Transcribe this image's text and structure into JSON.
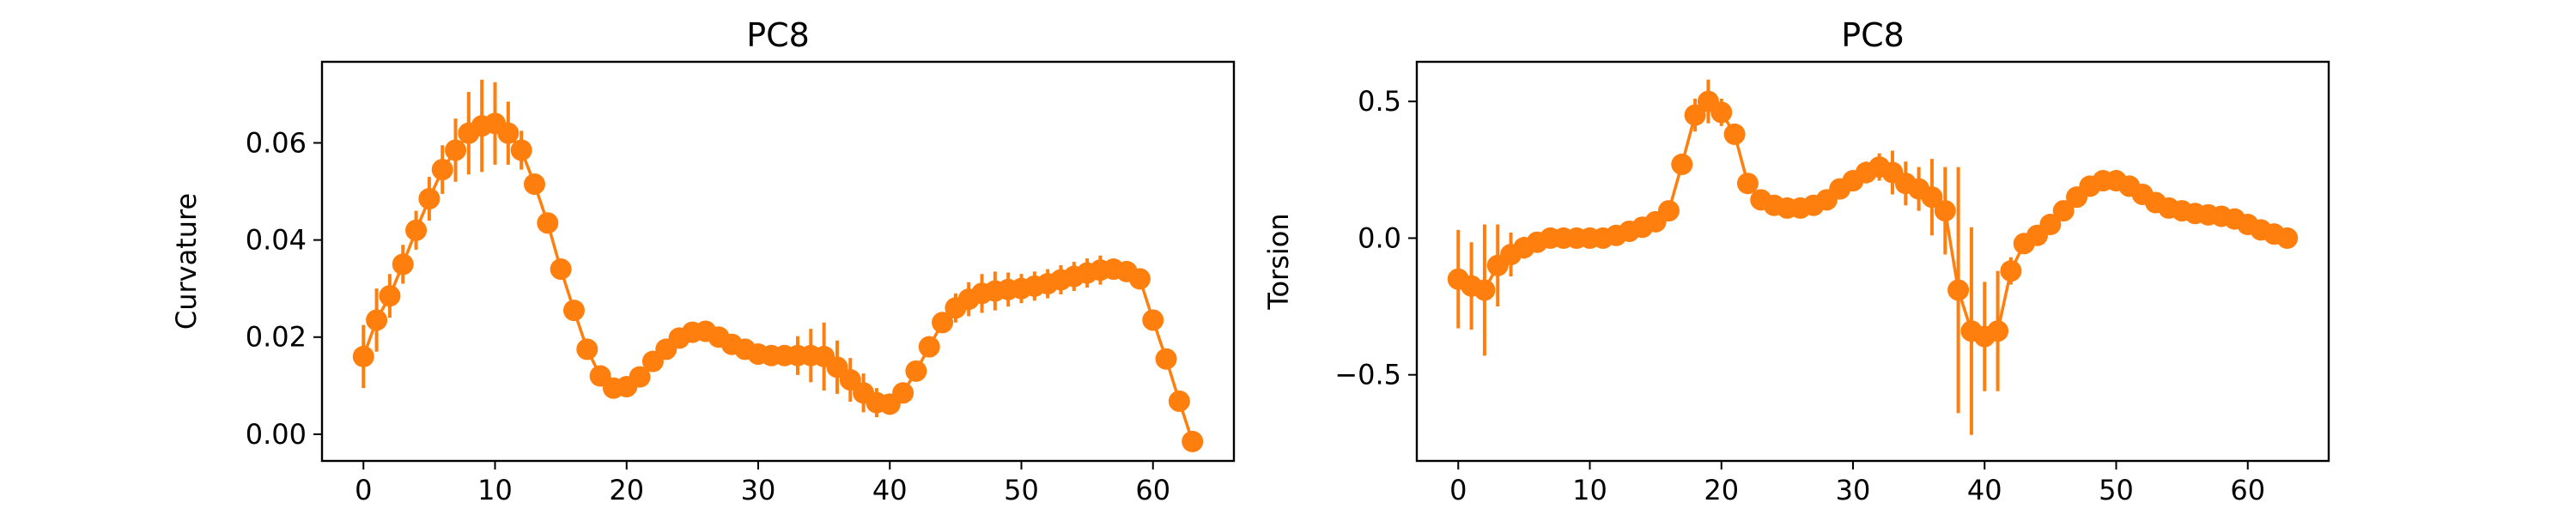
{
  "chart_data": [
    {
      "type": "line",
      "title": "PC8",
      "xlabel": "",
      "ylabel": "Curvature",
      "xlim": [
        -3.15,
        66.15
      ],
      "ylim": [
        -0.0055,
        0.0767
      ],
      "xticks": [
        0,
        10,
        20,
        30,
        40,
        50,
        60
      ],
      "xtick_labels": [
        "0",
        "10",
        "20",
        "30",
        "40",
        "50",
        "60"
      ],
      "yticks": [
        0.0,
        0.02,
        0.04,
        0.06
      ],
      "ytick_labels": [
        "0.00",
        "0.02",
        "0.04",
        "0.06"
      ],
      "grid": false,
      "color": "#ff7f0e",
      "series": [
        {
          "x": [
            0,
            1,
            2,
            3,
            4,
            5,
            6,
            7,
            8,
            9,
            10,
            11,
            12,
            13,
            14,
            15,
            16,
            17,
            18,
            19,
            20,
            21,
            22,
            23,
            24,
            25,
            26,
            27,
            28,
            29,
            30,
            31,
            32,
            33,
            34,
            35,
            36,
            37,
            38,
            39,
            40,
            41,
            42,
            43,
            44,
            45,
            46,
            47,
            48,
            49,
            50,
            51,
            52,
            53,
            54,
            55,
            56,
            57,
            58,
            59,
            60,
            61,
            62,
            63
          ],
          "y": [
            0.016,
            0.0235,
            0.0285,
            0.035,
            0.042,
            0.0485,
            0.0545,
            0.0585,
            0.062,
            0.0635,
            0.064,
            0.062,
            0.0585,
            0.0515,
            0.0435,
            0.034,
            0.0255,
            0.0175,
            0.012,
            0.0095,
            0.0098,
            0.0118,
            0.015,
            0.0175,
            0.0198,
            0.021,
            0.0212,
            0.02,
            0.0185,
            0.0175,
            0.0165,
            0.0162,
            0.0162,
            0.0162,
            0.0162,
            0.016,
            0.0138,
            0.0112,
            0.0085,
            0.0065,
            0.0062,
            0.0085,
            0.013,
            0.018,
            0.023,
            0.026,
            0.0278,
            0.029,
            0.0295,
            0.0298,
            0.03,
            0.0305,
            0.031,
            0.0318,
            0.0325,
            0.0332,
            0.0338,
            0.034,
            0.0335,
            0.032,
            0.0235,
            0.0155,
            0.0068,
            -0.0015
          ],
          "error": [
            0.0065,
            0.0065,
            0.0045,
            0.004,
            0.004,
            0.0045,
            0.005,
            0.0065,
            0.0085,
            0.0095,
            0.0085,
            0.0065,
            0.004,
            0.002,
            0.001,
            0.001,
            0.001,
            0.001,
            0.0015,
            0.0015,
            0.0015,
            0.0015,
            0.0015,
            0.0015,
            0.0015,
            0.0015,
            0.0015,
            0.0015,
            0.0015,
            0.0015,
            0.0015,
            0.0015,
            0.0015,
            0.004,
            0.0055,
            0.007,
            0.0055,
            0.0045,
            0.004,
            0.003,
            0.002,
            0.001,
            0.001,
            0.001,
            0.002,
            0.003,
            0.0035,
            0.004,
            0.004,
            0.0035,
            0.003,
            0.003,
            0.003,
            0.003,
            0.003,
            0.003,
            0.003,
            0.002,
            0.002,
            0.0015,
            0.001,
            0.001,
            0.001,
            0.001
          ]
        }
      ]
    },
    {
      "type": "line",
      "title": "PC8",
      "xlabel": "",
      "ylabel": "Torsion",
      "xlim": [
        -3.15,
        66.15
      ],
      "ylim": [
        -0.815,
        0.645
      ],
      "xticks": [
        0,
        10,
        20,
        30,
        40,
        50,
        60
      ],
      "xtick_labels": [
        "0",
        "10",
        "20",
        "30",
        "40",
        "50",
        "60"
      ],
      "yticks": [
        -0.5,
        0.0,
        0.5
      ],
      "ytick_labels": [
        "−0.5",
        "0.0",
        "0.5"
      ],
      "grid": false,
      "color": "#ff7f0e",
      "series": [
        {
          "x": [
            0,
            1,
            2,
            3,
            4,
            5,
            6,
            7,
            8,
            9,
            10,
            11,
            12,
            13,
            14,
            15,
            16,
            17,
            18,
            19,
            20,
            21,
            22,
            23,
            24,
            25,
            26,
            27,
            28,
            29,
            30,
            31,
            32,
            33,
            34,
            35,
            36,
            37,
            38,
            39,
            40,
            41,
            42,
            43,
            44,
            45,
            46,
            47,
            48,
            49,
            50,
            51,
            52,
            53,
            54,
            55,
            56,
            57,
            58,
            59,
            60,
            61,
            62,
            63
          ],
          "y": [
            -0.15,
            -0.175,
            -0.19,
            -0.1,
            -0.06,
            -0.035,
            -0.015,
            0.0,
            0.0,
            0.0,
            0.0,
            0.0,
            0.01,
            0.025,
            0.04,
            0.06,
            0.1,
            0.27,
            0.45,
            0.5,
            0.46,
            0.38,
            0.2,
            0.14,
            0.12,
            0.11,
            0.11,
            0.12,
            0.14,
            0.18,
            0.21,
            0.24,
            0.26,
            0.24,
            0.2,
            0.18,
            0.15,
            0.1,
            -0.19,
            -0.34,
            -0.36,
            -0.34,
            -0.12,
            -0.02,
            0.01,
            0.05,
            0.1,
            0.15,
            0.19,
            0.21,
            0.21,
            0.19,
            0.16,
            0.13,
            0.11,
            0.1,
            0.09,
            0.085,
            0.08,
            0.07,
            0.05,
            0.03,
            0.015,
            0.0
          ],
          "error": [
            0.18,
            0.16,
            0.24,
            0.15,
            0.08,
            0.04,
            0.01,
            0.01,
            0.01,
            0.01,
            0.01,
            0.01,
            0.01,
            0.01,
            0.01,
            0.01,
            0.01,
            0.01,
            0.06,
            0.08,
            0.05,
            0.01,
            0.01,
            0.01,
            0.01,
            0.01,
            0.01,
            0.01,
            0.01,
            0.01,
            0.02,
            0.04,
            0.05,
            0.08,
            0.08,
            0.08,
            0.14,
            0.16,
            0.45,
            0.38,
            0.2,
            0.22,
            0.05,
            0.02,
            0.01,
            0.01,
            0.01,
            0.01,
            0.01,
            0.01,
            0.01,
            0.01,
            0.01,
            0.01,
            0.01,
            0.01,
            0.01,
            0.01,
            0.01,
            0.01,
            0.01,
            0.01,
            0.01,
            0.01
          ]
        }
      ]
    }
  ]
}
